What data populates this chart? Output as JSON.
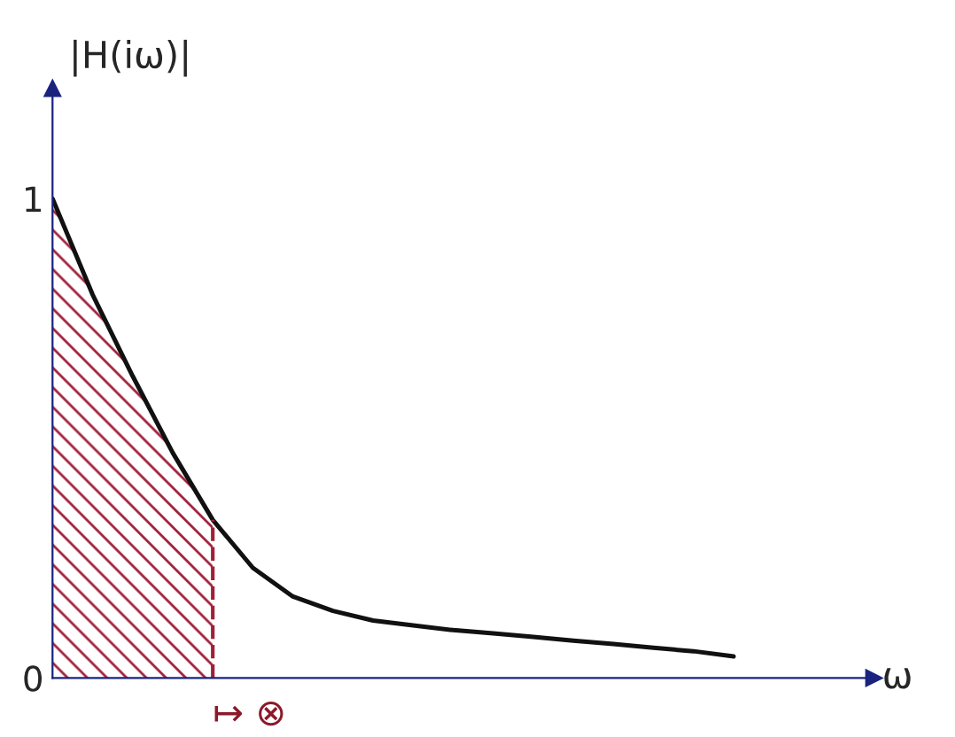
{
  "chart_data": {
    "type": "line",
    "ylabel": "|H(iω)|",
    "xlabel": "ω",
    "categories": [
      null,
      null,
      null,
      null,
      null,
      null,
      null,
      null,
      null,
      null,
      null,
      null,
      null,
      null,
      null,
      null,
      null,
      null
    ],
    "series": [
      {
        "color": "#111111",
        "values": [
          1.0,
          0.8,
          0.63,
          0.47,
          0.33,
          0.23,
          0.17,
          0.14,
          0.12,
          0.11,
          0.1,
          0.093,
          0.086,
          0.078,
          0.071,
          0.063,
          0.056,
          0.045
        ]
      },
      {
        "type": "area",
        "color": "#a0203a",
        "values": [
          1.0,
          0.8,
          0.63,
          0.47,
          0.33,
          null,
          null,
          null,
          null,
          null,
          null,
          null,
          null,
          null,
          null,
          null,
          null,
          null
        ]
      }
    ],
    "ylim": [
      0,
      1.23
    ],
    "yticks": [
      0,
      1
    ],
    "grid": false,
    "legend": false,
    "annotations": [
      "↦ ⊗"
    ]
  }
}
